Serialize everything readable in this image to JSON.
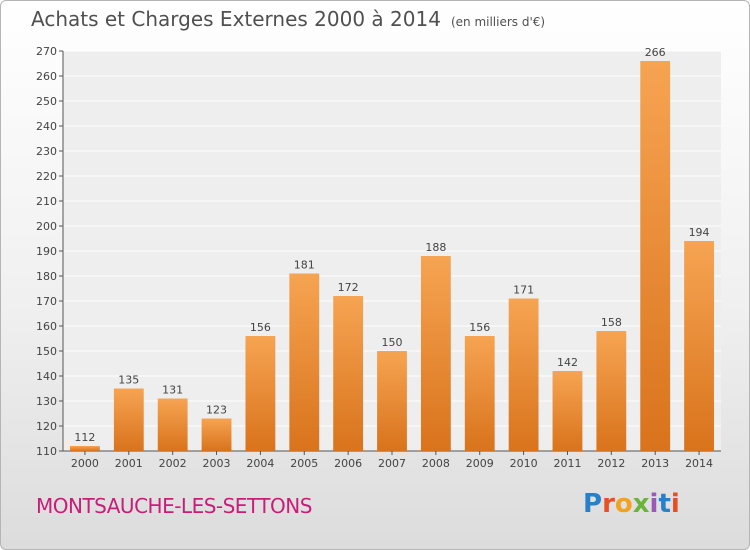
{
  "header": {
    "title": "Achats et Charges Externes 2000 à 2014",
    "units": "(en milliers d'€)"
  },
  "footer": {
    "city": "MONTSAUCHE-LES-SETTONS",
    "brand": "Proxiti"
  },
  "colors": {
    "bar_top": "#f6a452",
    "bar_bottom": "#d9731c",
    "title": "#505050",
    "city": "#cc1c79"
  },
  "chart_data": {
    "type": "bar",
    "title": "Achats et Charges Externes 2000 à 2014",
    "subtitle": "(en milliers d'€)",
    "xlabel": "",
    "ylabel": "",
    "categories": [
      "2000",
      "2001",
      "2002",
      "2003",
      "2004",
      "2005",
      "2006",
      "2007",
      "2008",
      "2009",
      "2010",
      "2011",
      "2012",
      "2013",
      "2014"
    ],
    "values": [
      112,
      135,
      131,
      123,
      156,
      181,
      172,
      150,
      188,
      156,
      171,
      142,
      158,
      266,
      194
    ],
    "ylim": [
      110,
      270
    ],
    "yticks": [
      110,
      120,
      130,
      140,
      150,
      160,
      170,
      180,
      190,
      200,
      210,
      220,
      230,
      240,
      250,
      260,
      270
    ],
    "grid": true,
    "data_labels": true
  }
}
